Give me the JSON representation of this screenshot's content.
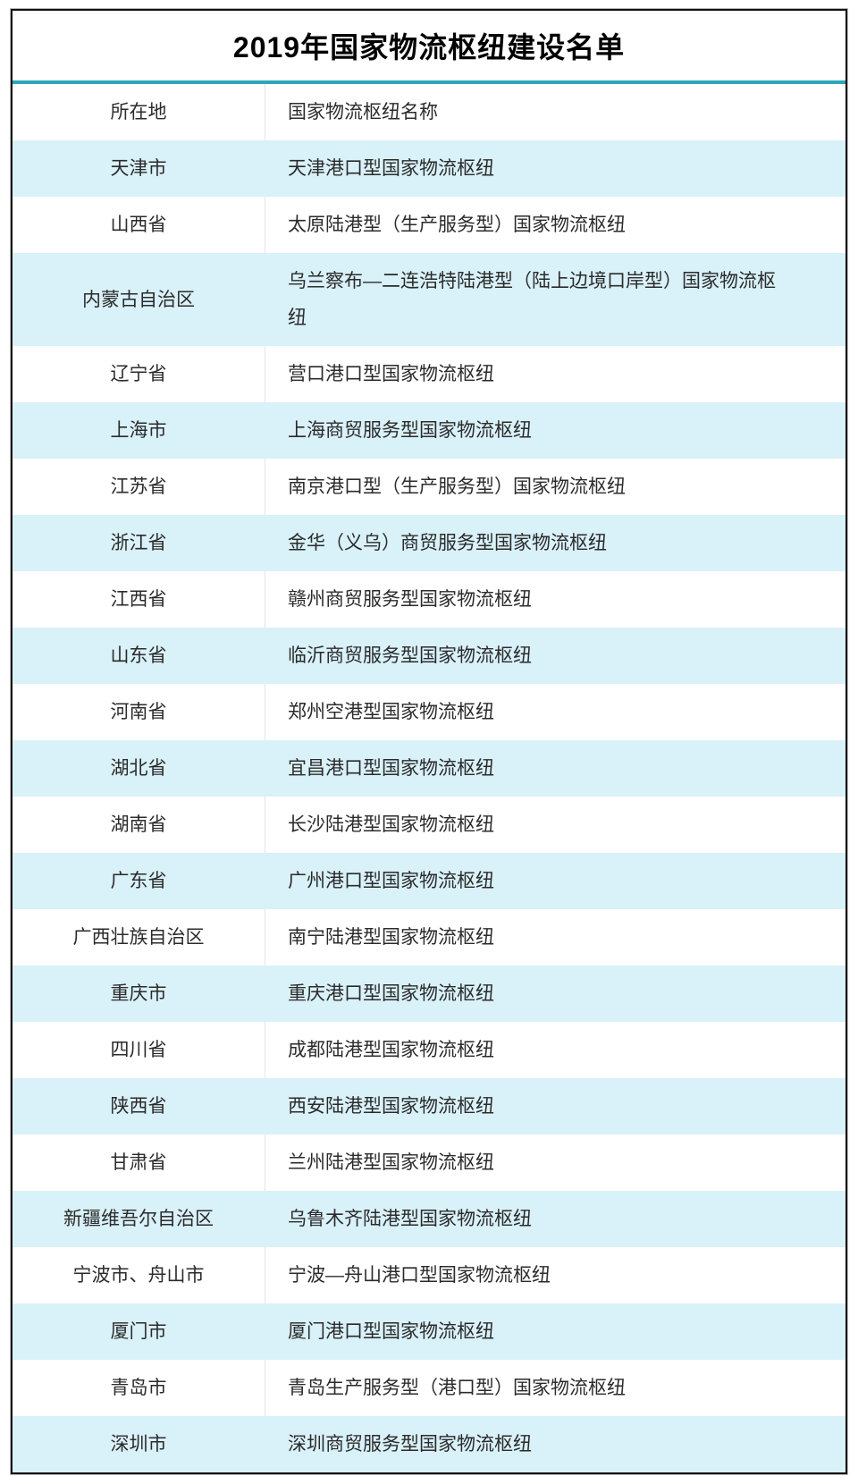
{
  "chart_data": {
    "type": "table",
    "title": "2019年国家物流枢纽建设名单",
    "columns": [
      "所在地",
      "国家物流枢纽名称"
    ],
    "rows": [
      [
        "天津市",
        "天津港口型国家物流枢纽"
      ],
      [
        "山西省",
        "太原陆港型（生产服务型）国家物流枢纽"
      ],
      [
        "内蒙古自治区",
        "乌兰察布—二连浩特陆港型（陆上边境口岸型）国家物流枢纽"
      ],
      [
        "辽宁省",
        "营口港口型国家物流枢纽"
      ],
      [
        "上海市",
        "上海商贸服务型国家物流枢纽"
      ],
      [
        "江苏省",
        "南京港口型（生产服务型）国家物流枢纽"
      ],
      [
        "浙江省",
        "金华（义乌）商贸服务型国家物流枢纽"
      ],
      [
        "江西省",
        "赣州商贸服务型国家物流枢纽"
      ],
      [
        "山东省",
        "临沂商贸服务型国家物流枢纽"
      ],
      [
        "河南省",
        "郑州空港型国家物流枢纽"
      ],
      [
        "湖北省",
        "宜昌港口型国家物流枢纽"
      ],
      [
        "湖南省",
        "长沙陆港型国家物流枢纽"
      ],
      [
        "广东省",
        "广州港口型国家物流枢纽"
      ],
      [
        "广西壮族自治区",
        "南宁陆港型国家物流枢纽"
      ],
      [
        "重庆市",
        "重庆港口型国家物流枢纽"
      ],
      [
        "四川省",
        "成都陆港型国家物流枢纽"
      ],
      [
        "陕西省",
        "西安陆港型国家物流枢纽"
      ],
      [
        "甘肃省",
        "兰州陆港型国家物流枢纽"
      ],
      [
        "新疆维吾尔自治区",
        "乌鲁木齐陆港型国家物流枢纽"
      ],
      [
        "宁波市、舟山市",
        "宁波—舟山港口型国家物流枢纽"
      ],
      [
        "厦门市",
        "厦门港口型国家物流枢纽"
      ],
      [
        "青岛市",
        "青岛生产服务型（港口型）国家物流枢纽"
      ],
      [
        "深圳市",
        "深圳商贸服务型国家物流枢纽"
      ]
    ],
    "layout": {
      "accent_color": "#2aa7b8",
      "alt_row_color": "#d9f1f8",
      "border_color": "#111111",
      "alternating_rows": true,
      "first_data_row_shaded": true
    }
  }
}
